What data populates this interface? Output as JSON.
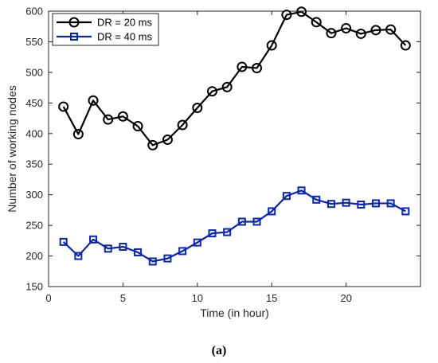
{
  "chart_data": {
    "type": "line",
    "xlabel": "Time (in hour)",
    "ylabel": "Number of working nodes",
    "xlim": [
      0,
      25
    ],
    "ylim": [
      150,
      600
    ],
    "xticks": [
      0,
      5,
      10,
      15,
      20
    ],
    "yticks": [
      150,
      200,
      250,
      300,
      350,
      400,
      450,
      500,
      550,
      600
    ],
    "grid": false,
    "legend_position": "top-left",
    "x": [
      1,
      2,
      3,
      4,
      5,
      6,
      7,
      8,
      9,
      10,
      11,
      12,
      13,
      14,
      15,
      16,
      17,
      18,
      19,
      20,
      21,
      22,
      23,
      24
    ],
    "series": [
      {
        "name": "DR = 20 ms",
        "color": "#000000",
        "marker": "circle",
        "values": [
          444,
          399,
          454,
          423,
          428,
          412,
          381,
          390,
          414,
          442,
          469,
          476,
          509,
          507,
          544,
          594,
          599,
          582,
          564,
          572,
          563,
          569,
          570,
          544
        ]
      },
      {
        "name": "DR = 40 ms",
        "color": "#0b24b8",
        "marker": "square",
        "values": [
          223,
          200,
          227,
          212,
          215,
          206,
          191,
          196,
          208,
          222,
          237,
          239,
          256,
          256,
          273,
          298,
          307,
          292,
          285,
          287,
          284,
          286,
          286,
          273
        ]
      }
    ]
  },
  "caption": "(a)"
}
